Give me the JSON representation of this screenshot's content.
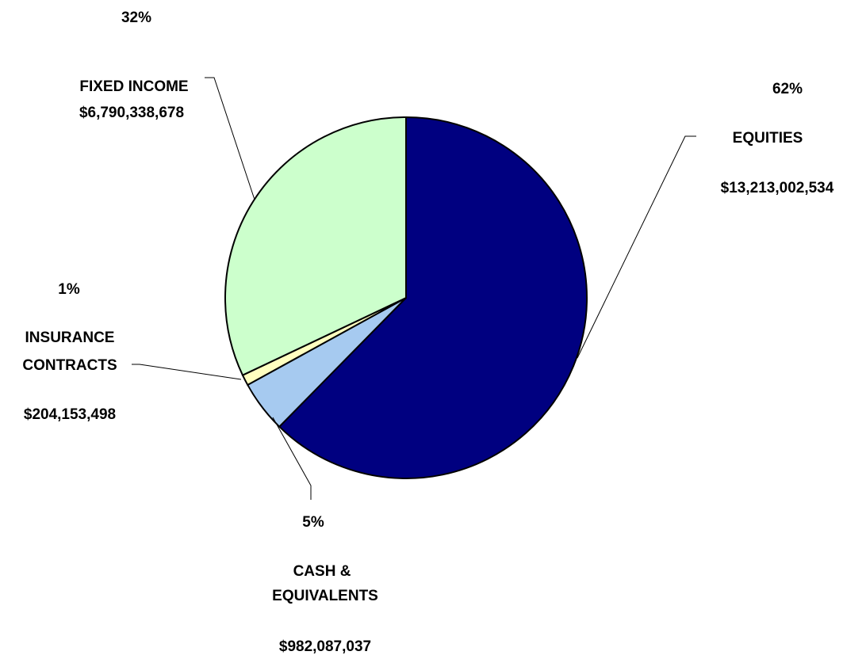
{
  "chart_data": {
    "type": "pie",
    "slices": [
      {
        "key": "equities",
        "lines": [
          "EQUITIES"
        ],
        "percent_label": "62%",
        "value_label": "$13,213,002,534",
        "value": 13213002534,
        "color": "#000080"
      },
      {
        "key": "cash",
        "lines": [
          "CASH &",
          "EQUIVALENTS"
        ],
        "percent_label": "5%",
        "value_label": "$982,087,037",
        "value": 982087037,
        "color": "#a6caf0"
      },
      {
        "key": "insurance",
        "lines": [
          "INSURANCE",
          "CONTRACTS"
        ],
        "percent_label": "1%",
        "value_label": "$204,153,498",
        "value": 204153498,
        "color": "#ffffc0"
      },
      {
        "key": "fixed-income",
        "lines": [
          "FIXED INCOME"
        ],
        "percent_label": "32%",
        "value_label": "$6,790,338,678",
        "value": 6790338678,
        "color": "#ccffcc"
      }
    ],
    "start_angle": "12 o'clock",
    "direction": "clockwise",
    "legend": "none"
  }
}
